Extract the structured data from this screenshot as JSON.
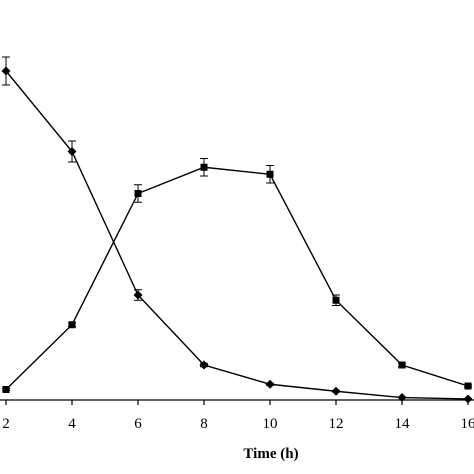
{
  "chart_data": {
    "type": "line",
    "title": "",
    "xlabel": "Time (h)",
    "ylabel": "",
    "xlim": [
      2,
      16
    ],
    "ylim": [
      0,
      100
    ],
    "x_ticks": [
      "2",
      "4",
      "6",
      "8",
      "10",
      "12",
      "14",
      "16"
    ],
    "grid": false,
    "legend": "none",
    "series": [
      {
        "marker": "diamond",
        "color": "#000000",
        "x": [
          2,
          4,
          6,
          8,
          10,
          12,
          14,
          16
        ],
        "y": [
          94,
          71,
          30,
          10,
          4.5,
          2.5,
          0.7,
          0.3
        ],
        "err": [
          4,
          3,
          1.5,
          0.5,
          0.3,
          0.2,
          0.1,
          0.1
        ]
      },
      {
        "marker": "square",
        "color": "#000000",
        "x": [
          2,
          4,
          6,
          8,
          10,
          12,
          14,
          16
        ],
        "y": [
          3,
          21.5,
          59,
          66.5,
          64.5,
          28.5,
          10,
          4
        ],
        "err": [
          0.3,
          0.5,
          2.5,
          2.5,
          2.5,
          1.5,
          0.5,
          0.3
        ]
      }
    ]
  }
}
